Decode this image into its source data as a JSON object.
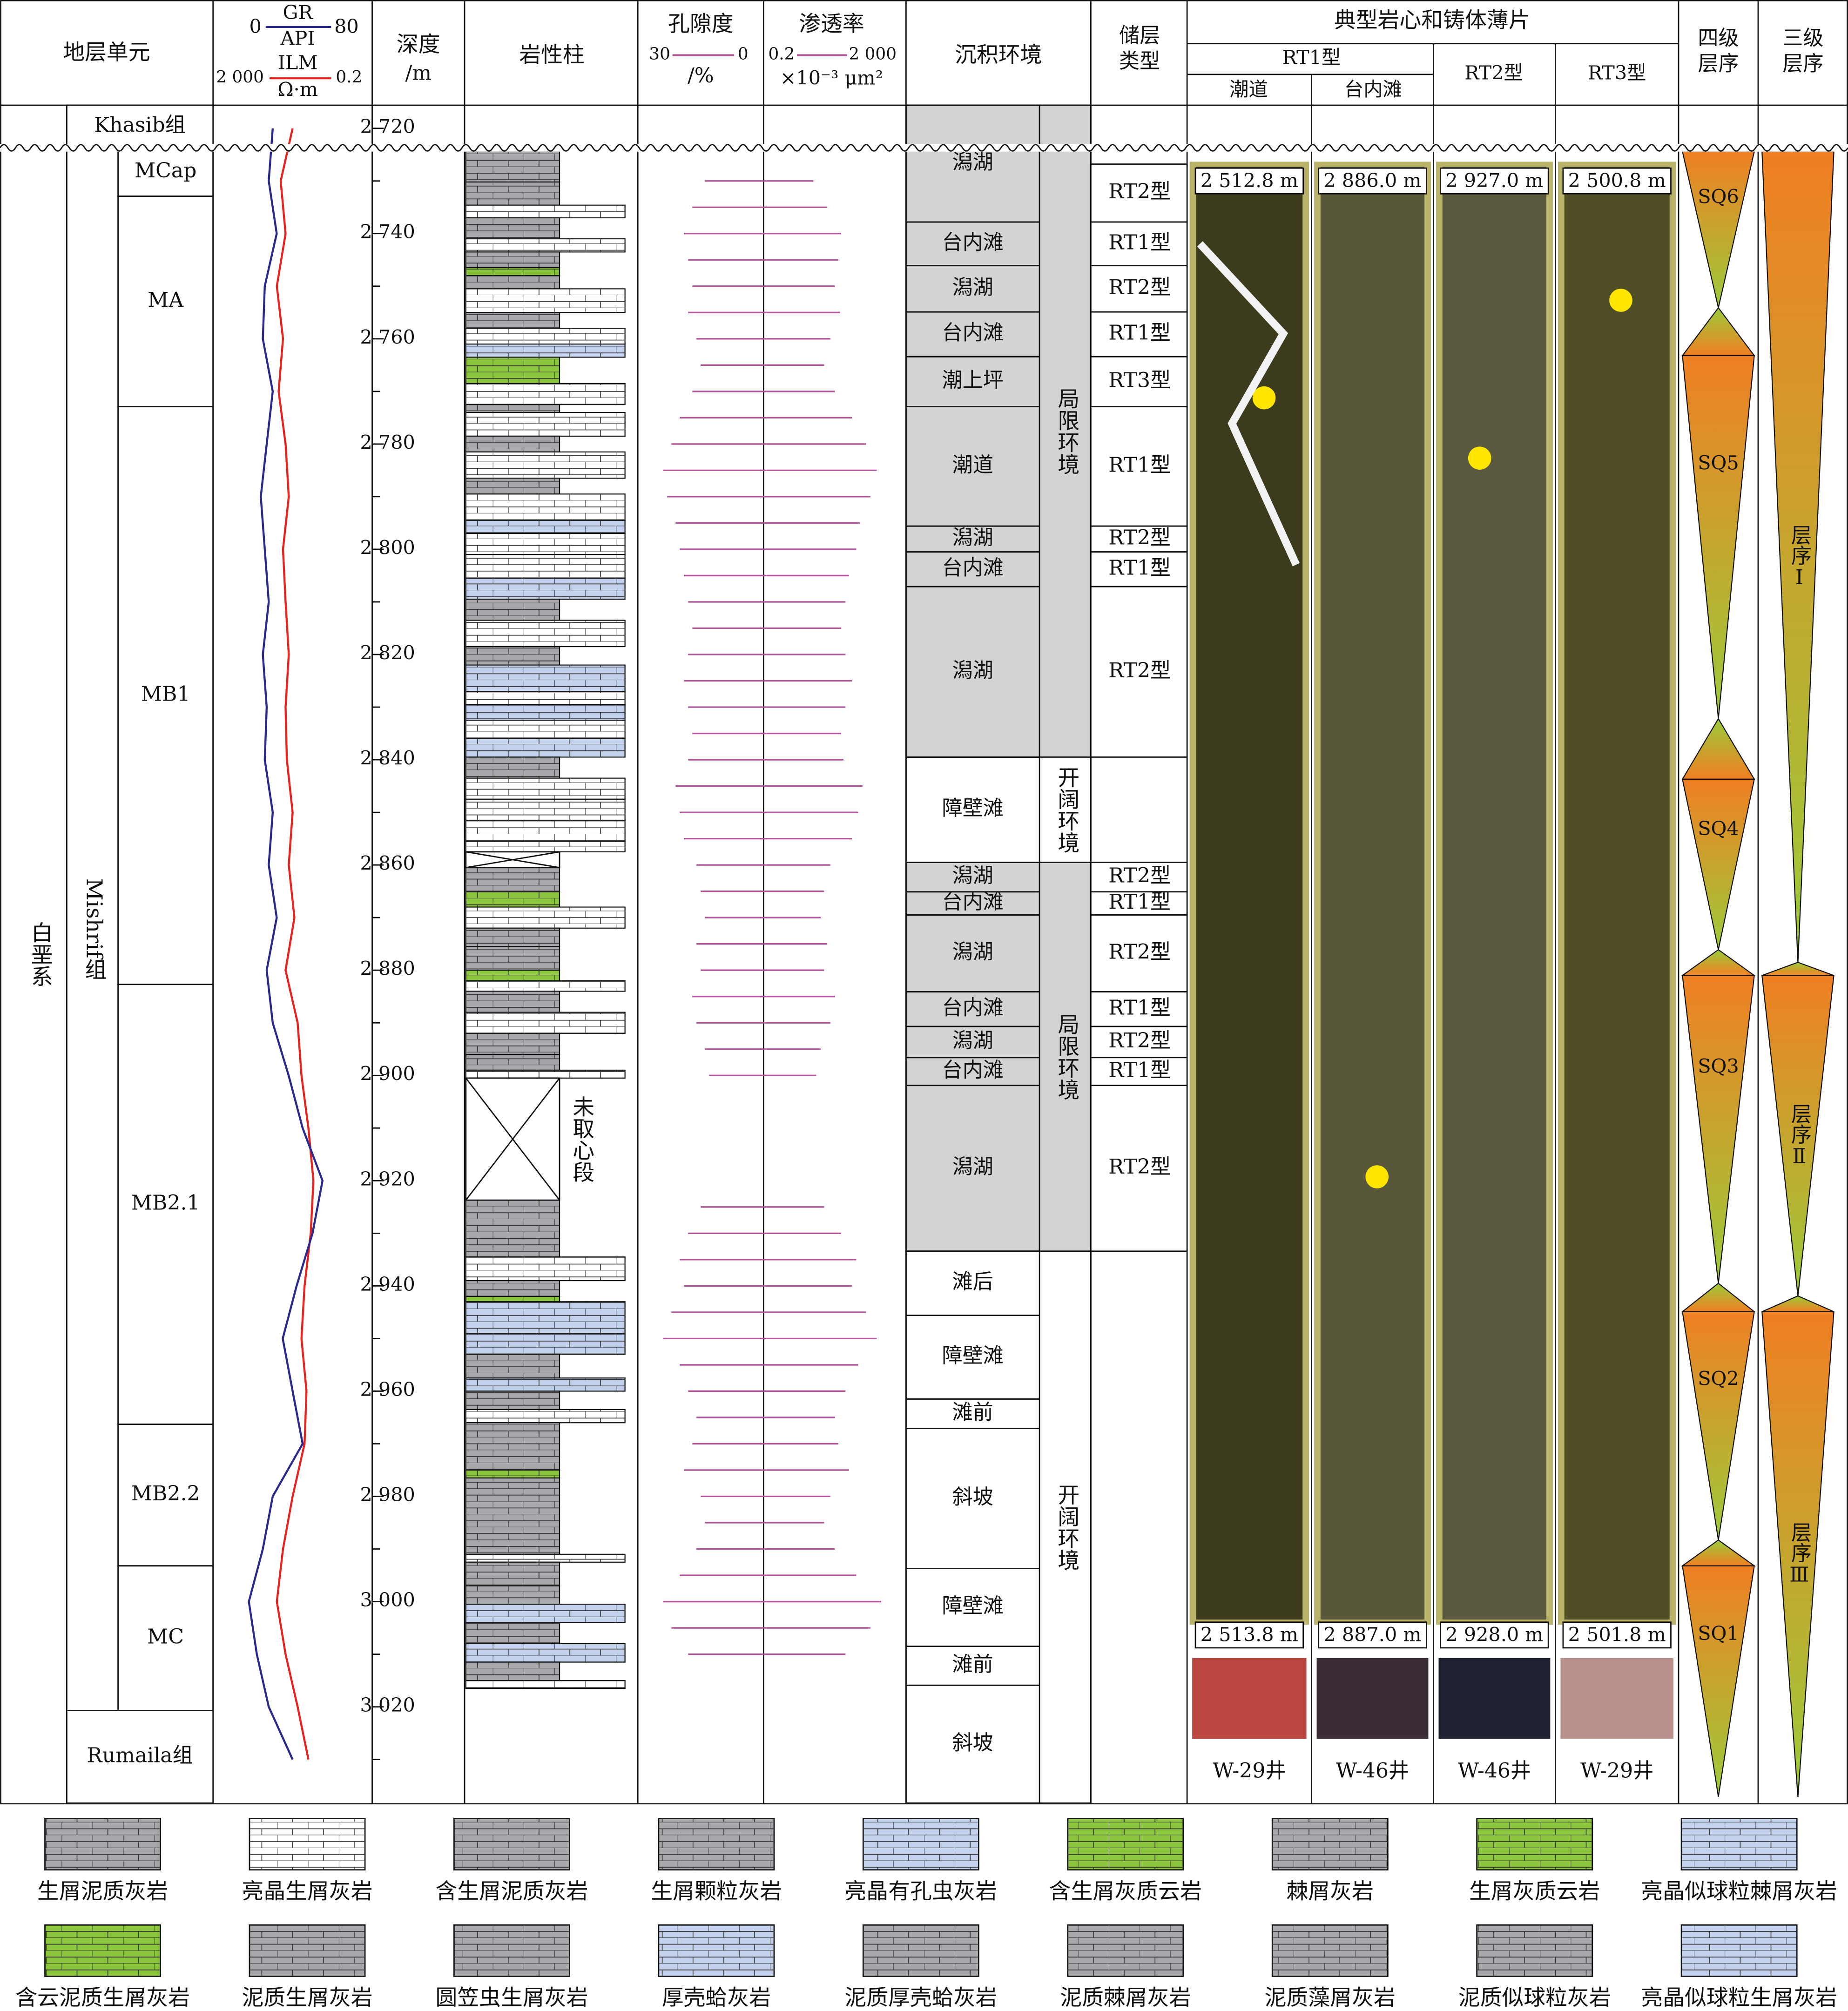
{
  "header": {
    "strat_unit": "地层单元",
    "gr": {
      "name": "GR",
      "unit": "API",
      "lim": [
        0,
        80
      ],
      "color": "#2b2a8c"
    },
    "ilm": {
      "name": "ILM",
      "unit": "Ω·m",
      "lim": [
        {
          "value": 2000,
          "label": "2 000"
        },
        0.2
      ],
      "color": "#e8231f"
    },
    "depth": {
      "name": "深度",
      "unit": "/m"
    },
    "lithology": "岩性柱",
    "porosity": {
      "name": "孔隙度",
      "unit": "/%",
      "lim": [
        30,
        0
      ]
    },
    "permeability": {
      "name": "渗透率",
      "unit": "×10⁻³ μm²",
      "lim": [
        0.2,
        {
          "value": 2000,
          "label": "2 000"
        }
      ]
    },
    "environment": "沉积环境",
    "reservoir": "储层类型",
    "sq4": "四级层序",
    "sq3": "三级层序"
  },
  "depth_lim": [
    2715.6,
    3038.3
  ],
  "depth_ticks": [
    {
      "value": 2720,
      "label": "2 720"
    },
    {
      "value": 2740,
      "label": "2 740"
    },
    {
      "value": 2760,
      "label": "2 760"
    },
    {
      "value": 2780,
      "label": "2 780"
    },
    {
      "value": 2800,
      "label": "2 800"
    },
    {
      "value": 2820,
      "label": "2 820"
    },
    {
      "value": 2840,
      "label": "2 840"
    },
    {
      "value": 2860,
      "label": "2 860"
    },
    {
      "value": 2880,
      "label": "2 880"
    },
    {
      "value": 2900,
      "label": "2 900"
    },
    {
      "value": 2920,
      "label": "2 920"
    },
    {
      "value": 2940,
      "label": "2 940"
    },
    {
      "value": 2960,
      "label": "2 960"
    },
    {
      "value": 2980,
      "label": "2 980"
    },
    {
      "value": 3000,
      "label": "3 000"
    },
    {
      "value": 3020,
      "label": "3 020"
    }
  ],
  "depth_minor_ticks": [
    2730,
    2750,
    2770,
    2790,
    2810,
    2830,
    2850,
    2870,
    2890,
    2910,
    2930,
    2950,
    2970,
    2990,
    3010,
    3030
  ],
  "strat": {
    "system": {
      "name": "白垩系",
      "top": 2715.6,
      "base": 3038.3
    },
    "group": {
      "name": "Mishrif组",
      "top": 2723.7,
      "base": 3020.7
    },
    "formations": [
      {
        "name": "Khasib组",
        "top": 2715.6,
        "base": 2723.7
      },
      {
        "name": "Rumaila组",
        "top": 3020.7,
        "base": 3038.3
      }
    ],
    "units": [
      {
        "name": "MCap",
        "top": 2723.7,
        "base": 2732.9
      },
      {
        "name": "MA",
        "top": 2732.9,
        "base": 2772.9
      },
      {
        "name": "MB1",
        "top": 2772.9,
        "base": 2882.7
      },
      {
        "name": "MB2.1",
        "top": 2882.7,
        "base": 2966.3
      },
      {
        "name": "MB2.2",
        "top": 2966.3,
        "base": 2993.2
      },
      {
        "name": "MC",
        "top": 2993.2,
        "base": 3020.7
      }
    ]
  },
  "logs": {
    "depth": [
      2720,
      2730,
      2740,
      2750,
      2760,
      2770,
      2780,
      2790,
      2800,
      2810,
      2820,
      2830,
      2840,
      2850,
      2860,
      2870,
      2880,
      2890,
      2900,
      2910,
      2920,
      2930,
      2940,
      2950,
      2960,
      2970,
      2980,
      2990,
      3000,
      3010,
      3020,
      3030
    ],
    "gr": [
      30,
      28,
      32,
      26,
      25,
      30,
      27,
      24,
      26,
      28,
      25,
      27,
      26,
      30,
      28,
      32,
      27,
      30,
      38,
      45,
      55,
      50,
      42,
      35,
      40,
      45,
      30,
      25,
      18,
      22,
      28,
      40
    ],
    "ilm": [
      20,
      40,
      30,
      50,
      35,
      45,
      30,
      25,
      35,
      30,
      25,
      30,
      28,
      20,
      25,
      18,
      30,
      15,
      12,
      8,
      6,
      7,
      10,
      12,
      9,
      10,
      20,
      35,
      50,
      30,
      15,
      8
    ]
  },
  "core_data": {
    "depth": [
      2730,
      2735,
      2740,
      2745,
      2750,
      2755,
      2760,
      2765,
      2770,
      2775,
      2780,
      2785,
      2790,
      2795,
      2800,
      2805,
      2810,
      2815,
      2820,
      2825,
      2830,
      2835,
      2840,
      2845,
      2850,
      2855,
      2860,
      2865,
      2870,
      2875,
      2880,
      2885,
      2890,
      2895,
      2900,
      2905,
      2910,
      2915,
      2920,
      2925,
      2930,
      2935,
      2940,
      2945,
      2950,
      2955,
      2960,
      2965,
      2970,
      2975,
      2980,
      2985,
      2990,
      2995,
      3000,
      3005,
      3010
    ],
    "porosity": [
      14,
      17,
      19,
      18,
      17,
      18,
      16,
      15,
      17,
      20,
      22,
      24,
      23,
      21,
      20,
      19,
      18,
      17,
      18,
      19,
      18,
      17,
      18,
      21,
      20,
      19,
      16,
      15,
      14,
      16,
      15,
      17,
      16,
      14,
      13,
      null,
      null,
      null,
      null,
      15,
      18,
      20,
      19,
      22,
      24,
      20,
      18,
      16,
      17,
      19,
      15,
      14,
      16,
      20,
      24,
      22,
      18
    ],
    "permeability": [
      5,
      12,
      30,
      25,
      20,
      28,
      15,
      10,
      20,
      60,
      150,
      300,
      200,
      100,
      80,
      50,
      40,
      30,
      40,
      60,
      40,
      30,
      35,
      120,
      90,
      60,
      15,
      10,
      8,
      12,
      10,
      20,
      15,
      8,
      6,
      null,
      null,
      null,
      null,
      10,
      30,
      80,
      60,
      150,
      300,
      90,
      40,
      20,
      25,
      50,
      15,
      10,
      20,
      80,
      400,
      200,
      40
    ],
    "porosity_color": "#b0559a",
    "permeability_color": "#b0559a"
  },
  "legend": [
    {
      "name": "生屑泥质灰岩",
      "color": "#a6a8ab"
    },
    {
      "name": "亮晶生屑灰岩",
      "color": "#ffffff"
    },
    {
      "name": "含生屑泥质灰岩",
      "color": "#a6a8ab"
    },
    {
      "name": "生屑颗粒灰岩",
      "color": "#a6a8ab"
    },
    {
      "name": "亮晶有孔虫灰岩",
      "color": "#c3d1ec"
    },
    {
      "name": "含生屑灰质云岩",
      "color": "#8cc63f"
    },
    {
      "name": "棘屑灰岩",
      "color": "#a6a8ab"
    },
    {
      "name": "生屑灰质云岩",
      "color": "#8cc63f"
    },
    {
      "name": "亮晶似球粒棘屑灰岩",
      "color": "#c3d1ec"
    },
    {
      "name": "含云泥质生屑灰岩",
      "color": "#8cc63f"
    },
    {
      "name": "泥质生屑灰岩",
      "color": "#a6a8ab"
    },
    {
      "name": "圆笠虫生屑灰岩",
      "color": "#a6a8ab"
    },
    {
      "name": "厚壳蛤灰岩",
      "color": "#c3d1ec"
    },
    {
      "name": "泥质厚壳蛤灰岩",
      "color": "#a6a8ab"
    },
    {
      "name": "泥质棘屑灰岩",
      "color": "#a6a8ab"
    },
    {
      "name": "泥质藻屑灰岩",
      "color": "#a6a8ab"
    },
    {
      "name": "泥质似球粒灰岩",
      "color": "#a6a8ab"
    },
    {
      "name": "亮晶似球粒生屑灰岩",
      "color": "#c3d1ec"
    }
  ],
  "beds": [
    [
      2724.4,
      2730.2,
      3
    ],
    [
      2730.2,
      2734.6,
      10
    ],
    [
      2734.6,
      2737.0,
      1
    ],
    [
      2737.0,
      2741.0,
      3
    ],
    [
      2741.0,
      2743.5,
      1
    ],
    [
      2743.5,
      2746.5,
      0
    ],
    [
      2746.5,
      2748.0,
      9
    ],
    [
      2748.0,
      2750.5,
      10
    ],
    [
      2750.5,
      2755.0,
      1
    ],
    [
      2755.0,
      2758.0,
      0
    ],
    [
      2758.0,
      2761.0,
      1
    ],
    [
      2761.0,
      2763.5,
      4
    ],
    [
      2763.5,
      2768.5,
      7
    ],
    [
      2768.5,
      2772.5,
      1
    ],
    [
      2772.5,
      2774.0,
      0
    ],
    [
      2774.0,
      2778.5,
      1
    ],
    [
      2778.5,
      2781.5,
      0
    ],
    [
      2781.5,
      2786.5,
      1
    ],
    [
      2786.5,
      2789.5,
      10
    ],
    [
      2789.5,
      2794.5,
      1
    ],
    [
      2794.5,
      2797.0,
      4
    ],
    [
      2797.0,
      2801.0,
      1
    ],
    [
      2801.0,
      2805.5,
      1
    ],
    [
      2805.5,
      2809.5,
      4
    ],
    [
      2809.5,
      2813.5,
      0
    ],
    [
      2813.5,
      2818.5,
      1
    ],
    [
      2818.5,
      2822.0,
      0
    ],
    [
      2822.0,
      2827.0,
      4
    ],
    [
      2827.0,
      2829.5,
      1
    ],
    [
      2829.5,
      2832.5,
      4
    ],
    [
      2832.5,
      2836.0,
      1
    ],
    [
      2836.0,
      2839.5,
      4
    ],
    [
      2839.5,
      2843.5,
      10
    ],
    [
      2843.5,
      2847.5,
      1
    ],
    [
      2847.5,
      2851.5,
      1
    ],
    [
      2851.5,
      2855.5,
      1
    ],
    [
      2855.5,
      2857.5,
      1
    ],
    [
      2860.5,
      2865.0,
      0
    ],
    [
      2865.0,
      2868.0,
      7
    ],
    [
      2868.0,
      2872.0,
      1
    ],
    [
      2872.0,
      2875.5,
      10
    ],
    [
      2875.5,
      2880.0,
      0
    ],
    [
      2880.0,
      2882.0,
      9
    ],
    [
      2882.0,
      2884.0,
      1
    ],
    [
      2884.0,
      2888.0,
      0
    ],
    [
      2888.0,
      2892.0,
      1
    ],
    [
      2892.0,
      2896.0,
      0
    ],
    [
      2896.0,
      2899.0,
      13
    ],
    [
      2899.0,
      2900.5,
      1
    ],
    [
      2923.7,
      2934.5,
      10
    ],
    [
      2934.5,
      2939.0,
      1
    ],
    [
      2939.0,
      2942.0,
      10
    ],
    [
      2942.0,
      2943.0,
      9
    ],
    [
      2943.0,
      2949.0,
      12
    ],
    [
      2949.0,
      2953.0,
      17
    ],
    [
      2953.0,
      2957.5,
      13
    ],
    [
      2957.5,
      2960.0,
      17
    ],
    [
      2960.0,
      2963.5,
      14
    ],
    [
      2963.5,
      2966.0,
      1
    ],
    [
      2966.0,
      2975.0,
      3
    ],
    [
      2975.0,
      2976.5,
      9
    ],
    [
      2976.5,
      2991.0,
      10
    ],
    [
      2991.0,
      2992.5,
      1
    ],
    [
      2992.5,
      2997.0,
      11
    ],
    [
      2997.0,
      3000.5,
      13
    ],
    [
      3000.5,
      3004.0,
      8
    ],
    [
      3004.0,
      3008.0,
      16
    ],
    [
      3008.0,
      3011.5,
      8
    ],
    [
      3011.5,
      3015.0,
      15
    ],
    [
      3015.0,
      3016.5,
      1
    ]
  ],
  "uncored": [
    {
      "top": 2857.5,
      "base": 2860.5
    },
    {
      "top": 2900.5,
      "base": 2923.7,
      "label": "未取心段"
    }
  ],
  "environment": {
    "intervals": [
      {
        "name": "潟湖",
        "top": 2715.6,
        "base": 2737.8
      },
      {
        "name": "台内滩",
        "top": 2737.8,
        "base": 2746.1
      },
      {
        "name": "潟湖",
        "top": 2746.1,
        "base": 2754.9
      },
      {
        "name": "台内滩",
        "top": 2754.9,
        "base": 2763.4
      },
      {
        "name": "潮上坪",
        "top": 2763.4,
        "base": 2772.9
      },
      {
        "name": "潮道",
        "top": 2772.9,
        "base": 2795.6
      },
      {
        "name": "潟湖",
        "top": 2795.6,
        "base": 2800.5
      },
      {
        "name": "台内滩",
        "top": 2800.5,
        "base": 2807.1
      },
      {
        "name": "潟湖",
        "top": 2807.1,
        "base": 2839.5
      },
      {
        "name": "障壁滩",
        "top": 2839.5,
        "base": 2859.5
      },
      {
        "name": "潟湖",
        "top": 2859.5,
        "base": 2865.1
      },
      {
        "name": "台内滩",
        "top": 2865.1,
        "base": 2869.5
      },
      {
        "name": "潟湖",
        "top": 2869.5,
        "base": 2884.1
      },
      {
        "name": "台内滩",
        "top": 2884.1,
        "base": 2890.7
      },
      {
        "name": "潟湖",
        "top": 2890.7,
        "base": 2896.6
      },
      {
        "name": "台内滩",
        "top": 2896.6,
        "base": 2901.9
      },
      {
        "name": "潟湖",
        "top": 2901.9,
        "base": 2933.4
      },
      {
        "name": "滩后",
        "top": 2933.4,
        "base": 2945.6
      },
      {
        "name": "障壁滩",
        "top": 2945.6,
        "base": 2961.5
      },
      {
        "name": "滩前",
        "top": 2961.5,
        "base": 2967.1
      },
      {
        "name": "斜坡",
        "top": 2967.1,
        "base": 2993.7
      },
      {
        "name": "障壁滩",
        "top": 2993.7,
        "base": 3008.5
      },
      {
        "name": "滩前",
        "top": 3008.5,
        "base": 3015.9
      },
      {
        "name": "斜坡",
        "top": 3015.9,
        "base": 3038.3
      }
    ],
    "groups": [
      {
        "name": "局限环境",
        "top": 2715.6,
        "base": 2839.5,
        "color": "#d3d3d3"
      },
      {
        "name": "开阔环境",
        "top": 2839.5,
        "base": 2859.5,
        "color": "#ffffff"
      },
      {
        "name": "局限环境",
        "top": 2859.5,
        "base": 2933.4,
        "color": "#d3d3d3"
      },
      {
        "name": "开阔环境",
        "top": 2933.4,
        "base": 3038.3,
        "color": "#ffffff"
      }
    ]
  },
  "reservoir": [
    {
      "name": "RT2型",
      "top": 2726.8,
      "base": 2737.8
    },
    {
      "name": "RT1型",
      "top": 2737.8,
      "base": 2746.1
    },
    {
      "name": "RT2型",
      "top": 2746.1,
      "base": 2754.9
    },
    {
      "name": "RT1型",
      "top": 2754.9,
      "base": 2763.4
    },
    {
      "name": "RT3型",
      "top": 2763.4,
      "base": 2772.9
    },
    {
      "name": "RT1型",
      "top": 2772.9,
      "base": 2795.6
    },
    {
      "name": "RT2型",
      "top": 2795.6,
      "base": 2800.5
    },
    {
      "name": "RT1型",
      "top": 2800.5,
      "base": 2807.1
    },
    {
      "name": "RT2型",
      "top": 2807.1,
      "base": 2839.5
    },
    {
      "name": "RT2型",
      "top": 2859.5,
      "base": 2865.1
    },
    {
      "name": "RT1型",
      "top": 2865.1,
      "base": 2869.5
    },
    {
      "name": "RT2型",
      "top": 2869.5,
      "base": 2884.1
    },
    {
      "name": "RT1型",
      "top": 2884.1,
      "base": 2890.7
    },
    {
      "name": "RT2型",
      "top": 2890.7,
      "base": 2896.6
    },
    {
      "name": "RT1型",
      "top": 2896.6,
      "base": 2901.9
    },
    {
      "name": "RT2型",
      "top": 2901.9,
      "base": 2933.4
    }
  ],
  "cores": {
    "title": "典型岩心和铸体薄片",
    "groups": [
      {
        "label": "RT1型",
        "subs": [
          "潮道",
          "台内滩"
        ]
      },
      {
        "label": "RT2型"
      },
      {
        "label": "RT3型"
      }
    ],
    "samples": [
      {
        "top": "2 512.8 m",
        "base": "2 513.8 m",
        "well": "W-29井",
        "color": "#3d3b1d"
      },
      {
        "top": "2 886.0 m",
        "base": "2 887.0 m",
        "well": "W-46井",
        "color": "#58573a"
      },
      {
        "top": "2 927.0 m",
        "base": "2 928.0 m",
        "well": "W-46井",
        "color": "#5a5940"
      },
      {
        "top": "2 500.8 m",
        "base": "2 501.8 m",
        "well": "W-29井",
        "color": "#4f4d26"
      }
    ]
  },
  "sequences4": [
    {
      "name": "SQ6",
      "top": 2724.4,
      "turn": 2754.1,
      "base": 2763.2
    },
    {
      "name": "SQ5",
      "top": 2763.2,
      "turn": 2832.2,
      "base": 2843.7
    },
    {
      "name": "SQ4",
      "top": 2843.7,
      "turn": 2876.1,
      "base": 2881.0
    },
    {
      "name": "SQ3",
      "top": 2881.0,
      "turn": 2939.5,
      "base": 2944.9
    },
    {
      "name": "SQ2",
      "top": 2944.9,
      "turn": 2988.3,
      "base": 2993.2
    },
    {
      "name": "SQ1",
      "top": 2993.2,
      "turn": 3037.1,
      "base": 3037.1
    }
  ],
  "sequences3": [
    {
      "name": "层序Ⅰ",
      "top": 2724.4,
      "turn": 2878.5,
      "base": 2881.0
    },
    {
      "name": "层序Ⅱ",
      "top": 2881.0,
      "turn": 2941.9,
      "base": 2944.9
    },
    {
      "name": "层序Ⅲ",
      "top": 2944.9,
      "turn": 3037.1,
      "base": 3037.1
    }
  ],
  "sequence_colors": {
    "wide": "#f07f22",
    "narrow": "#9ccb3b"
  }
}
